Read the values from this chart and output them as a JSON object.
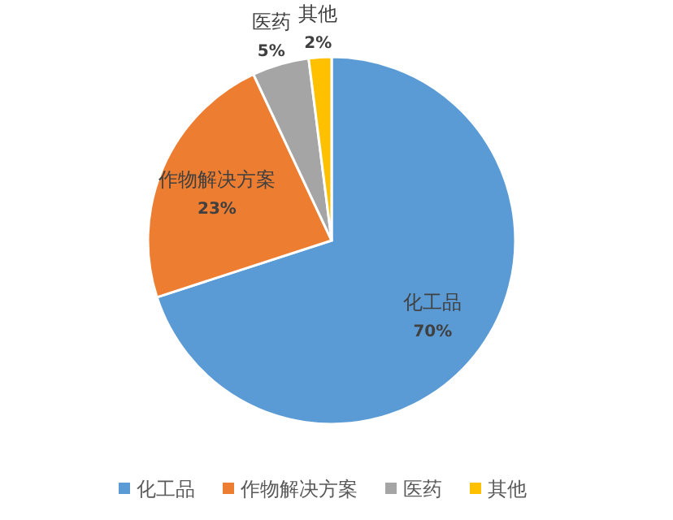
{
  "chart_data": {
    "type": "pie",
    "categories": [
      "化工品",
      "作物解决方案",
      "医药",
      "其他"
    ],
    "values": [
      70,
      23,
      5,
      2
    ],
    "value_labels": [
      "70%",
      "23%",
      "5%",
      "2%"
    ],
    "colors": [
      "#5b9bd5",
      "#ed7d31",
      "#a5a5a5",
      "#ffc000"
    ],
    "legend": "bottom"
  }
}
